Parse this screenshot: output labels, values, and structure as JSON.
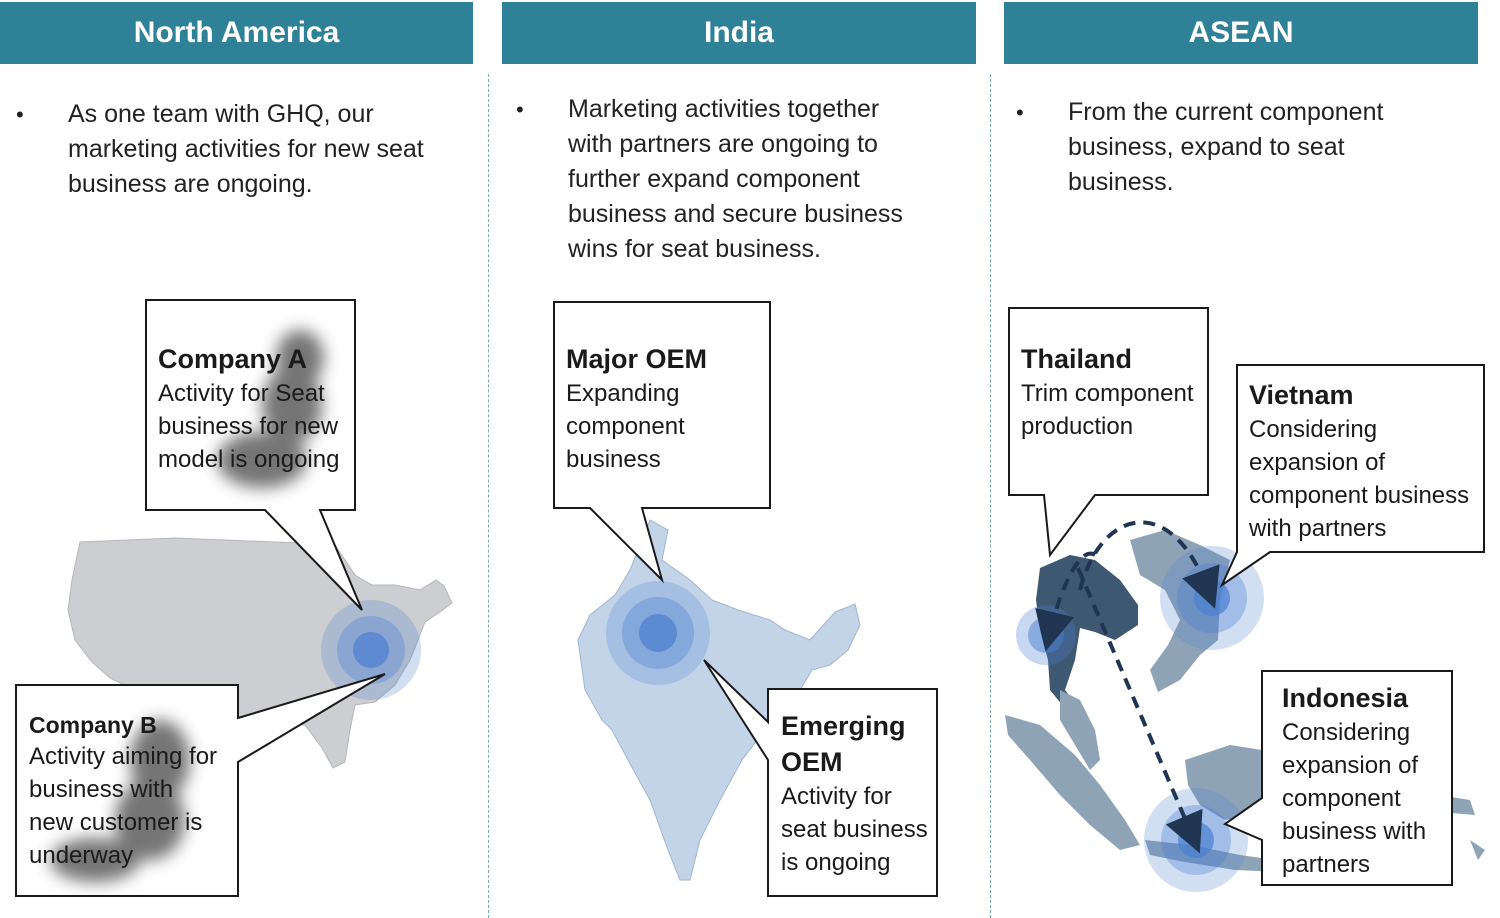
{
  "panels": [
    {
      "header": "North America",
      "bullet": "As one team with GHQ, our marketing activities for new seat business are ongoing."
    },
    {
      "header": "India",
      "bullet": "Marketing activities together with partners are ongoing to further expand component business and secure business wins for seat business."
    },
    {
      "header": "ASEAN",
      "bullet": "From the current component business, expand to seat business."
    }
  ],
  "bullet_glyph": "•",
  "callouts": {
    "company_a": {
      "title": "Company A",
      "lines": [
        "Activity for Seat",
        "business for new",
        "model is ongoing"
      ]
    },
    "company_b": {
      "title": "Company B",
      "lines": [
        "Activity aiming for",
        "business with",
        "new customer is",
        "underway"
      ]
    },
    "major_oem": {
      "title": "Major OEM",
      "lines": [
        "Expanding",
        "component",
        "business"
      ]
    },
    "emerging_oem": {
      "title_lines": [
        "Emerging",
        "OEM"
      ],
      "lines": [
        "Activity for",
        "seat business",
        "is ongoing"
      ]
    },
    "thailand": {
      "title": "Thailand",
      "lines": [
        "Trim component",
        "production"
      ]
    },
    "vietnam": {
      "title": "Vietnam",
      "lines": [
        "Considering",
        "expansion of",
        "component business",
        "with partners"
      ]
    },
    "indonesia": {
      "title": "Indonesia",
      "lines": [
        "Considering",
        "expansion of",
        "component",
        "business with",
        "partners"
      ]
    }
  },
  "colors": {
    "header_bg": "#2f8197",
    "map_gray": "#ccced2",
    "map_india": "#c3d4e8",
    "map_asean": "#8fa3b6",
    "highlight": "#4a7fd0",
    "arrow": "#1f3552"
  }
}
